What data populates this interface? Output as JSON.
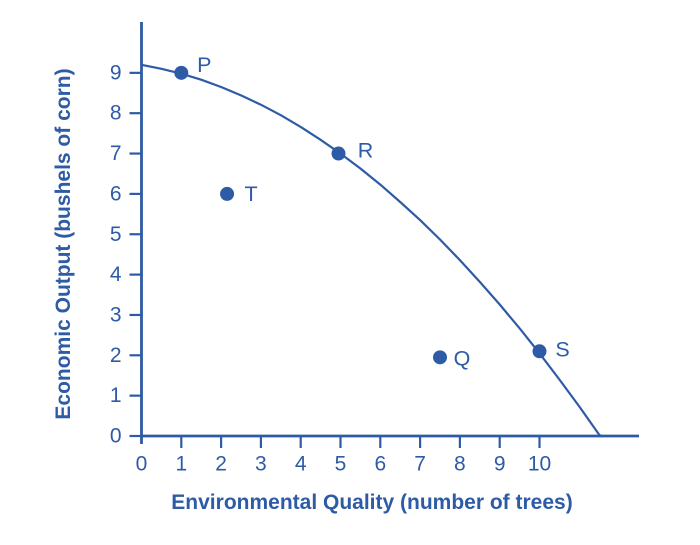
{
  "figure": {
    "background": "#ffffff",
    "accent": "#2e5ba6"
  },
  "chart_data": {
    "type": "scatter",
    "title": "",
    "xlabel": "Environmental Quality (number of trees)",
    "ylabel": "Economic Output (bushels of corn)",
    "xlim": [
      0,
      12.5
    ],
    "ylim": [
      0,
      10.3
    ],
    "x_ticks": [
      0,
      1,
      2,
      3,
      4,
      5,
      6,
      7,
      8,
      9,
      10
    ],
    "y_ticks": [
      0,
      1,
      2,
      3,
      4,
      5,
      6,
      7,
      8,
      9
    ],
    "grid": false,
    "legend": "none",
    "points": [
      {
        "label": "P",
        "x": 1,
        "y": 9,
        "on_curve": true,
        "label_offset": [
          23,
          -8
        ]
      },
      {
        "label": "R",
        "x": 4.95,
        "y": 7,
        "on_curve": true,
        "label_offset": [
          27,
          -3
        ]
      },
      {
        "label": "T",
        "x": 2.15,
        "y": 6,
        "on_curve": false,
        "label_offset": [
          24,
          0
        ]
      },
      {
        "label": "Q",
        "x": 7.5,
        "y": 1.95,
        "on_curve": false,
        "label_offset": [
          22,
          1
        ]
      },
      {
        "label": "S",
        "x": 10,
        "y": 2.1,
        "on_curve": true,
        "label_offset": [
          23,
          -2
        ]
      }
    ],
    "curve": {
      "name": "production-possibility-frontier",
      "points": [
        [
          0,
          9.2
        ],
        [
          0.5,
          9.1
        ],
        [
          1,
          8.98
        ],
        [
          1.5,
          8.83
        ],
        [
          2,
          8.65
        ],
        [
          2.5,
          8.44
        ],
        [
          3,
          8.21
        ],
        [
          3.5,
          7.95
        ],
        [
          4,
          7.66
        ],
        [
          4.5,
          7.34
        ],
        [
          5,
          7.0
        ],
        [
          5.5,
          6.63
        ],
        [
          6,
          6.23
        ],
        [
          6.5,
          5.8
        ],
        [
          7,
          5.35
        ],
        [
          7.5,
          4.87
        ],
        [
          8,
          4.36
        ],
        [
          8.5,
          3.82
        ],
        [
          9,
          3.26
        ],
        [
          9.5,
          2.67
        ],
        [
          10,
          2.05
        ],
        [
          10.5,
          1.4
        ],
        [
          11,
          0.73
        ],
        [
          11.5,
          0.03
        ],
        [
          11.55,
          0
        ]
      ]
    }
  }
}
